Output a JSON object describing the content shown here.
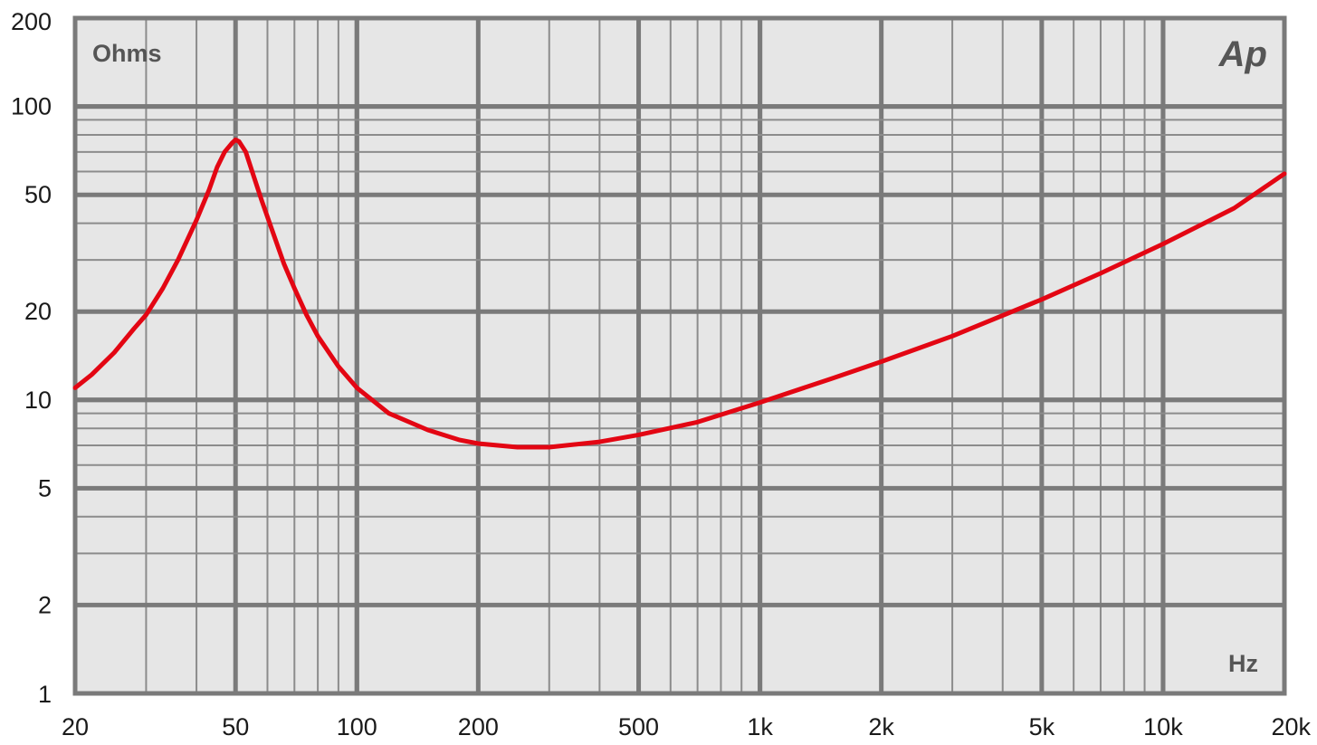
{
  "chart_data": {
    "type": "line",
    "x_scale": "log",
    "y_scale": "log",
    "xlim": [
      20,
      20000
    ],
    "ylim": [
      1,
      200
    ],
    "grid": true,
    "y_unit_label": "Ohms",
    "x_unit_label": "Hz",
    "logo_text": "Ap",
    "x_ticks": [
      {
        "value": 20,
        "label": "20"
      },
      {
        "value": 50,
        "label": "50"
      },
      {
        "value": 100,
        "label": "100"
      },
      {
        "value": 200,
        "label": "200"
      },
      {
        "value": 500,
        "label": "500"
      },
      {
        "value": 1000,
        "label": "1k"
      },
      {
        "value": 2000,
        "label": "2k"
      },
      {
        "value": 5000,
        "label": "5k"
      },
      {
        "value": 10000,
        "label": "10k"
      },
      {
        "value": 20000,
        "label": "20k"
      }
    ],
    "y_ticks": [
      {
        "value": 1,
        "label": "1"
      },
      {
        "value": 2,
        "label": "2"
      },
      {
        "value": 5,
        "label": "5"
      },
      {
        "value": 10,
        "label": "10"
      },
      {
        "value": 20,
        "label": "20"
      },
      {
        "value": 50,
        "label": "50"
      },
      {
        "value": 100,
        "label": "100"
      },
      {
        "value": 200,
        "label": "200"
      }
    ],
    "colors": {
      "background": "#e6e6e6",
      "grid_major": "#7a7a7a",
      "grid_minor": "#8c8c8c",
      "series": "#e30613"
    },
    "series": [
      {
        "x": [
          20,
          22,
          25,
          28,
          30,
          33,
          36,
          40,
          43,
          45,
          47,
          49,
          50,
          51,
          53,
          55,
          58,
          62,
          66,
          70,
          75,
          80,
          90,
          100,
          120,
          150,
          180,
          200,
          250,
          300,
          400,
          500,
          700,
          1000,
          1500,
          2000,
          3000,
          5000,
          7000,
          10000,
          15000,
          20000
        ],
        "y": [
          11,
          12.2,
          14.5,
          17.5,
          19.5,
          24,
          30,
          41,
          52,
          62,
          70,
          75,
          77,
          76,
          70,
          60,
          48,
          37,
          29,
          24,
          19.5,
          16.5,
          13,
          11,
          9,
          7.9,
          7.3,
          7.1,
          6.9,
          6.9,
          7.2,
          7.6,
          8.4,
          9.8,
          11.8,
          13.5,
          16.5,
          22,
          27,
          34,
          45,
          59
        ]
      }
    ]
  }
}
